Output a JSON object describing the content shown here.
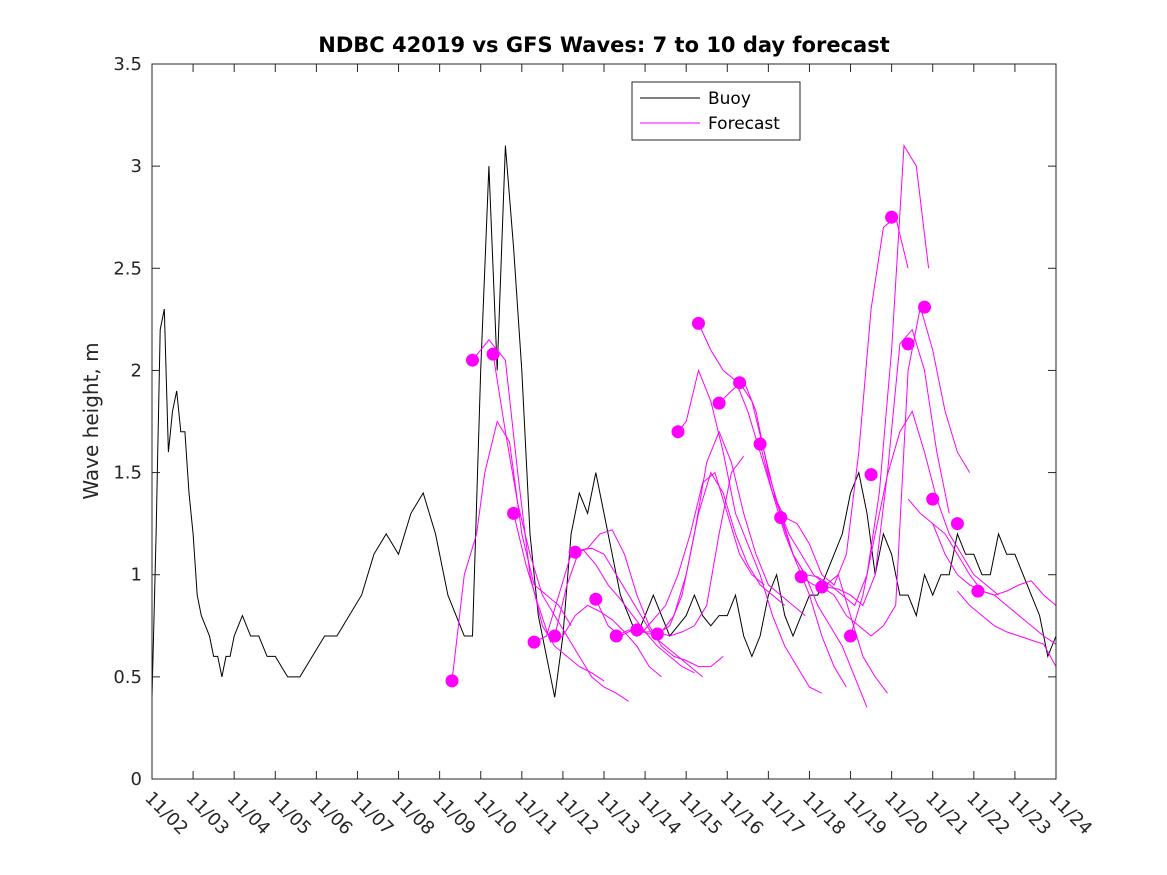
{
  "chart_data": {
    "type": "line",
    "title": "NDBC 42019 vs GFS Waves: 7 to 10 day forecast",
    "xlabel": "",
    "ylabel": "Wave height, m",
    "xlim": [
      0,
      22
    ],
    "ylim": [
      0,
      3.5
    ],
    "x_tick_values": [
      0,
      1,
      2,
      3,
      4,
      5,
      6,
      7,
      8,
      9,
      10,
      11,
      12,
      13,
      14,
      15,
      16,
      17,
      18,
      19,
      20,
      21,
      22
    ],
    "x_tick_labels": [
      "11/02",
      "11/03",
      "11/04",
      "11/05",
      "11/06",
      "11/07",
      "11/08",
      "11/09",
      "11/10",
      "11/11",
      "11/12",
      "11/13",
      "11/14",
      "11/15",
      "11/16",
      "11/17",
      "11/18",
      "11/19",
      "11/20",
      "11/21",
      "11/22",
      "11/23",
      "11/24"
    ],
    "y_tick_values": [
      0,
      0.5,
      1,
      1.5,
      2,
      2.5,
      3,
      3.5
    ],
    "y_tick_labels": [
      "0",
      "0.5",
      "1",
      "1.5",
      "2",
      "2.5",
      "3",
      "3.5"
    ],
    "legend": {
      "position": "top-center",
      "entries": [
        "Buoy",
        "Forecast"
      ]
    },
    "colors": {
      "buoy": "#000000",
      "forecast": "#ff00ff",
      "axes": "#262626"
    },
    "buoy": {
      "name": "Buoy",
      "x": [
        0,
        0.1,
        0.2,
        0.3,
        0.4,
        0.5,
        0.6,
        0.7,
        0.8,
        0.9,
        1.0,
        1.1,
        1.2,
        1.3,
        1.4,
        1.5,
        1.6,
        1.7,
        1.8,
        1.9,
        2.0,
        2.2,
        2.4,
        2.6,
        2.8,
        3.0,
        3.3,
        3.6,
        3.9,
        4.2,
        4.5,
        4.8,
        5.1,
        5.4,
        5.7,
        6.0,
        6.3,
        6.6,
        6.9,
        7.2,
        7.4,
        7.6,
        7.8,
        8.0,
        8.2,
        8.4,
        8.6,
        8.8,
        9.0,
        9.2,
        9.4,
        9.6,
        9.8,
        10.0,
        10.2,
        10.4,
        10.6,
        10.8,
        11.0,
        11.2,
        11.4,
        11.6,
        11.8,
        12.0,
        12.2,
        12.4,
        12.6,
        12.8,
        13.0,
        13.2,
        13.4,
        13.6,
        13.8,
        14.0,
        14.2,
        14.4,
        14.6,
        14.8,
        15.0,
        15.2,
        15.4,
        15.6,
        15.8,
        16.0,
        16.2,
        16.4,
        16.6,
        16.8,
        17.0,
        17.2,
        17.4,
        17.6,
        17.8,
        18.0,
        18.2,
        18.4,
        18.6,
        18.8,
        19.0,
        19.2,
        19.4,
        19.6,
        19.8,
        20.0,
        20.2,
        20.4,
        20.6,
        20.8,
        21.0,
        21.2,
        21.4,
        21.6,
        21.8,
        22.0
      ],
      "values": [
        0.4,
        1.2,
        2.2,
        2.3,
        1.6,
        1.8,
        1.9,
        1.7,
        1.7,
        1.4,
        1.2,
        0.9,
        0.8,
        0.75,
        0.7,
        0.6,
        0.6,
        0.5,
        0.6,
        0.6,
        0.7,
        0.8,
        0.7,
        0.7,
        0.6,
        0.6,
        0.5,
        0.5,
        0.6,
        0.7,
        0.7,
        0.8,
        0.9,
        1.1,
        1.2,
        1.1,
        1.3,
        1.4,
        1.2,
        0.9,
        0.8,
        0.7,
        0.7,
        2.0,
        3.0,
        2.0,
        3.1,
        2.6,
        2.0,
        1.2,
        0.8,
        0.6,
        0.4,
        0.7,
        1.2,
        1.4,
        1.3,
        1.5,
        1.3,
        1.1,
        0.9,
        0.8,
        0.7,
        0.8,
        0.9,
        0.8,
        0.7,
        0.75,
        0.8,
        0.9,
        0.8,
        0.75,
        0.8,
        0.8,
        0.9,
        0.7,
        0.6,
        0.7,
        0.9,
        1.0,
        0.8,
        0.7,
        0.8,
        0.9,
        0.9,
        1.0,
        1.1,
        1.2,
        1.4,
        1.5,
        1.3,
        1.0,
        1.2,
        1.1,
        0.9,
        0.9,
        0.8,
        1.0,
        0.9,
        1.0,
        1.0,
        1.2,
        1.1,
        1.1,
        1.0,
        1.0,
        1.2,
        1.1,
        1.1,
        1.0,
        0.9,
        0.8,
        0.6,
        0.7
      ]
    },
    "forecast_series": [
      {
        "name": "Forecast",
        "x": [
          7.3,
          7.6,
          7.9,
          8.1,
          8.4,
          8.7,
          9.0,
          9.3,
          9.6,
          9.9,
          10.2
        ],
        "values": [
          0.48,
          1.0,
          1.2,
          1.5,
          1.75,
          1.65,
          1.2,
          0.95,
          0.9,
          0.85,
          0.75
        ]
      },
      {
        "name": "Forecast",
        "x": [
          7.8,
          8.2,
          8.6,
          8.9,
          9.2,
          9.5,
          9.8,
          10.1,
          10.4,
          10.7,
          11.0
        ],
        "values": [
          2.05,
          2.15,
          2.05,
          1.5,
          1.0,
          0.75,
          0.65,
          0.6,
          0.55,
          0.52,
          0.48
        ]
      },
      {
        "name": "Forecast",
        "x": [
          8.3,
          8.6,
          8.9,
          9.2,
          9.5,
          9.8,
          10.1,
          10.4,
          10.7,
          11.0,
          11.3,
          11.6
        ],
        "values": [
          2.08,
          1.7,
          1.35,
          1.1,
          0.9,
          0.8,
          0.7,
          0.6,
          0.5,
          0.45,
          0.42,
          0.38
        ]
      },
      {
        "name": "Forecast",
        "x": [
          8.8,
          9.1,
          9.4,
          9.7,
          10.0,
          10.3,
          10.6,
          10.9,
          11.2,
          11.5,
          11.8,
          12.1,
          12.4
        ],
        "values": [
          1.3,
          1.05,
          0.85,
          0.67,
          0.7,
          0.8,
          0.85,
          0.82,
          0.78,
          0.72,
          0.65,
          0.55,
          0.5
        ]
      },
      {
        "name": "Forecast",
        "x": [
          9.3,
          9.6,
          9.9,
          10.2,
          10.5,
          10.8,
          11.1,
          11.4,
          11.7,
          12.0,
          12.3,
          12.6,
          12.9,
          13.2
        ],
        "values": [
          0.67,
          0.7,
          0.9,
          1.1,
          1.12,
          1.05,
          0.95,
          0.88,
          0.8,
          0.72,
          0.65,
          0.6,
          0.55,
          0.52
        ]
      },
      {
        "name": "Forecast",
        "x": [
          9.8,
          10.1,
          10.4,
          10.7,
          11.0,
          11.3,
          11.6,
          11.9,
          12.2,
          12.5,
          12.8,
          13.1,
          13.4
        ],
        "values": [
          0.7,
          0.95,
          1.12,
          1.13,
          1.1,
          1.0,
          0.9,
          0.8,
          0.7,
          0.65,
          0.6,
          0.55,
          0.5
        ]
      },
      {
        "name": "Forecast",
        "x": [
          10.3,
          10.6,
          10.9,
          11.2,
          11.5,
          11.8,
          12.1,
          12.4,
          12.7,
          13.0,
          13.3,
          13.6,
          13.9
        ],
        "values": [
          1.11,
          1.13,
          1.2,
          1.22,
          1.1,
          0.9,
          0.75,
          0.65,
          0.6,
          0.58,
          0.55,
          0.55,
          0.6
        ]
      },
      {
        "name": "Forecast",
        "x": [
          10.8,
          11.1,
          11.4,
          11.7,
          12.0,
          12.3,
          12.6,
          12.9,
          13.2,
          13.5,
          13.8,
          14.1,
          14.4
        ],
        "values": [
          0.88,
          0.75,
          0.7,
          0.73,
          0.72,
          0.72,
          0.7,
          0.72,
          0.75,
          0.85,
          1.2,
          1.5,
          1.58
        ]
      },
      {
        "name": "Forecast",
        "x": [
          11.3,
          11.6,
          11.9,
          12.2,
          12.5,
          12.8,
          13.1,
          13.4,
          13.7,
          14.0,
          14.3,
          14.6,
          14.9
        ],
        "values": [
          0.7,
          0.73,
          0.71,
          0.78,
          0.85,
          1.0,
          1.2,
          1.45,
          1.5,
          1.3,
          1.1,
          1.0,
          0.95
        ]
      },
      {
        "name": "Forecast",
        "x": [
          11.8,
          12.1,
          12.4,
          12.7,
          13.0,
          13.3,
          13.6,
          13.9,
          14.2,
          14.5,
          14.8,
          15.1,
          15.4
        ],
        "values": [
          0.73,
          0.71,
          0.72,
          0.8,
          1.0,
          1.3,
          1.5,
          1.4,
          1.2,
          1.05,
          0.95,
          0.9,
          0.85
        ]
      },
      {
        "name": "Forecast",
        "x": [
          12.3,
          12.6,
          12.9,
          13.2,
          13.5,
          13.8,
          14.1,
          14.4,
          14.7,
          15.0,
          15.3,
          15.6,
          15.9
        ],
        "values": [
          0.71,
          0.75,
          0.9,
          1.2,
          1.55,
          1.7,
          1.55,
          1.3,
          1.1,
          0.95,
          0.9,
          0.85,
          0.8
        ]
      },
      {
        "name": "Forecast",
        "x": [
          12.8,
          13.0,
          13.3,
          13.6,
          13.9,
          14.2,
          14.5,
          14.8,
          15.1,
          15.4,
          15.7,
          16.0,
          16.3
        ],
        "values": [
          1.7,
          1.75,
          2.0,
          1.85,
          1.6,
          1.3,
          1.15,
          1.0,
          0.8,
          0.65,
          0.55,
          0.45,
          0.42
        ]
      },
      {
        "name": "Forecast",
        "x": [
          13.3,
          13.6,
          13.9,
          14.2,
          14.5,
          14.8,
          15.1,
          15.4,
          15.7,
          16.0,
          16.3,
          16.6,
          16.9
        ],
        "values": [
          2.23,
          2.1,
          2.0,
          1.95,
          1.8,
          1.6,
          1.4,
          1.2,
          1.05,
          0.9,
          0.7,
          0.55,
          0.45
        ]
      },
      {
        "name": "Forecast",
        "x": [
          13.8,
          14.1,
          14.4,
          14.7,
          15.0,
          15.3,
          15.6,
          15.9,
          16.2,
          16.5,
          16.8,
          17.1,
          17.4
        ],
        "values": [
          1.84,
          1.9,
          1.95,
          1.8,
          1.5,
          1.3,
          1.1,
          1.0,
          0.85,
          0.75,
          0.65,
          0.5,
          0.35
        ]
      },
      {
        "name": "Forecast",
        "x": [
          14.3,
          14.6,
          14.9,
          15.2,
          15.5,
          15.8,
          16.1,
          16.4,
          16.7,
          17.0,
          17.3,
          17.6,
          17.9
        ],
        "values": [
          1.94,
          1.85,
          1.6,
          1.35,
          1.2,
          1.1,
          1.0,
          0.95,
          1.0,
          0.8,
          0.6,
          0.5,
          0.42
        ]
      },
      {
        "name": "Forecast",
        "x": [
          14.8,
          15.1,
          15.4,
          15.7,
          16.0,
          16.3,
          16.6,
          16.9,
          17.2,
          17.5,
          17.8,
          18.1,
          18.4
        ],
        "values": [
          1.64,
          1.4,
          1.28,
          1.25,
          1.15,
          1.0,
          0.95,
          1.1,
          1.6,
          2.3,
          2.7,
          2.75,
          2.5
        ]
      },
      {
        "name": "Forecast",
        "x": [
          15.3,
          15.6,
          15.9,
          16.2,
          16.5,
          16.8,
          17.1,
          17.4,
          17.7,
          18.0,
          18.3,
          18.6,
          18.9
        ],
        "values": [
          1.28,
          1.1,
          1.0,
          0.99,
          0.95,
          0.9,
          0.85,
          1.0,
          1.4,
          2.1,
          3.1,
          3.0,
          2.5
        ]
      },
      {
        "name": "Forecast",
        "x": [
          15.8,
          16.1,
          16.4,
          16.7,
          17.0,
          17.3,
          17.6,
          17.9,
          18.2,
          18.5,
          18.8,
          19.1,
          19.4
        ],
        "values": [
          0.99,
          0.95,
          0.94,
          0.93,
          0.9,
          0.85,
          1.0,
          1.5,
          2.13,
          2.2,
          2.0,
          1.6,
          1.3
        ]
      },
      {
        "name": "Forecast",
        "x": [
          16.3,
          16.6,
          16.9,
          17.2,
          17.5,
          17.8,
          18.1,
          18.4,
          18.7,
          19.0,
          19.3,
          19.6,
          19.9
        ],
        "values": [
          0.94,
          0.9,
          0.8,
          0.75,
          0.7,
          0.75,
          0.85,
          2.0,
          2.31,
          2.1,
          1.8,
          1.6,
          1.5
        ]
      },
      {
        "name": "Forecast",
        "x": [
          17.0,
          17.3,
          17.6,
          17.9,
          18.2,
          18.5,
          18.8,
          19.1,
          19.4,
          19.7,
          20.0,
          20.3,
          20.6
        ],
        "values": [
          0.7,
          0.9,
          1.2,
          1.49,
          1.7,
          1.8,
          1.6,
          1.37,
          1.2,
          1.1,
          1.0,
          0.95,
          0.9
        ]
      },
      {
        "name": "Forecast",
        "x": [
          18.4,
          18.7,
          19.0,
          19.3,
          19.6,
          19.9,
          20.2,
          20.5,
          20.8,
          21.1,
          21.4,
          21.7,
          22.0
        ],
        "values": [
          1.37,
          1.3,
          1.25,
          1.2,
          1.1,
          1.0,
          0.92,
          0.9,
          0.85,
          0.8,
          0.75,
          0.7,
          0.66
        ]
      },
      {
        "name": "Forecast",
        "x": [
          19.0,
          19.3,
          19.6,
          19.9,
          20.2,
          20.5,
          20.8,
          21.1,
          21.4,
          21.7,
          22.0
        ],
        "values": [
          1.25,
          1.1,
          1.0,
          0.95,
          0.92,
          0.9,
          0.92,
          0.95,
          0.97,
          0.9,
          0.85
        ]
      },
      {
        "name": "Forecast",
        "x": [
          19.6,
          19.9,
          20.2,
          20.5,
          20.8,
          21.1,
          21.4,
          21.7,
          22.0
        ],
        "values": [
          0.92,
          0.85,
          0.8,
          0.75,
          0.72,
          0.7,
          0.68,
          0.66,
          0.55
        ]
      }
    ],
    "forecast_markers": {
      "x": [
        7.3,
        7.8,
        8.3,
        8.8,
        9.3,
        9.8,
        10.3,
        10.8,
        11.3,
        11.8,
        12.3,
        12.8,
        13.3,
        13.8,
        14.3,
        14.8,
        15.3,
        15.8,
        16.3,
        17.0,
        17.5,
        18.0,
        18.4,
        18.8,
        19.0,
        19.6,
        20.1
      ],
      "values": [
        0.48,
        2.05,
        2.08,
        1.3,
        0.67,
        0.7,
        1.11,
        0.88,
        0.7,
        0.73,
        0.71,
        1.7,
        2.23,
        1.84,
        1.94,
        1.64,
        1.28,
        0.99,
        0.94,
        0.7,
        1.49,
        2.75,
        2.13,
        2.31,
        1.37,
        1.25,
        0.92
      ]
    }
  }
}
